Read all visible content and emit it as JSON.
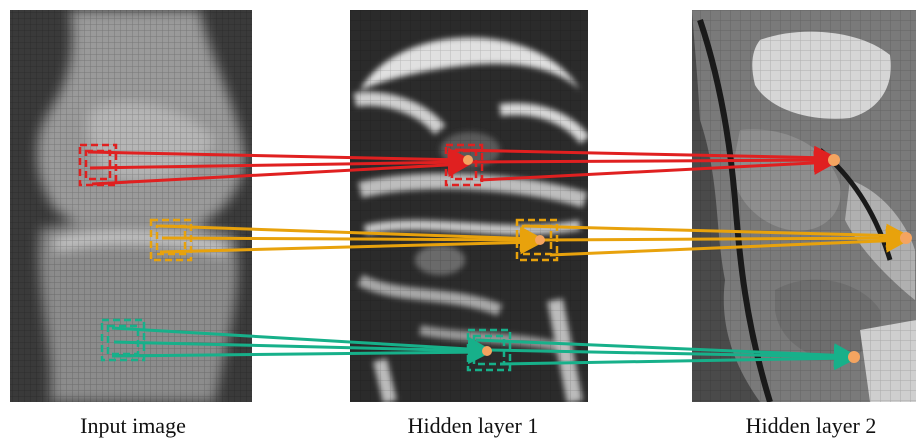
{
  "panels": [
    {
      "caption": "Input image"
    },
    {
      "caption": "Hidden layer 1"
    },
    {
      "caption": "Hidden layer 2"
    }
  ],
  "colors": {
    "red": "#e02020",
    "orange": "#e8a20c",
    "green": "#17b08a",
    "dot": "#f4a460",
    "pixel_grid": "#8a8a8a"
  }
}
